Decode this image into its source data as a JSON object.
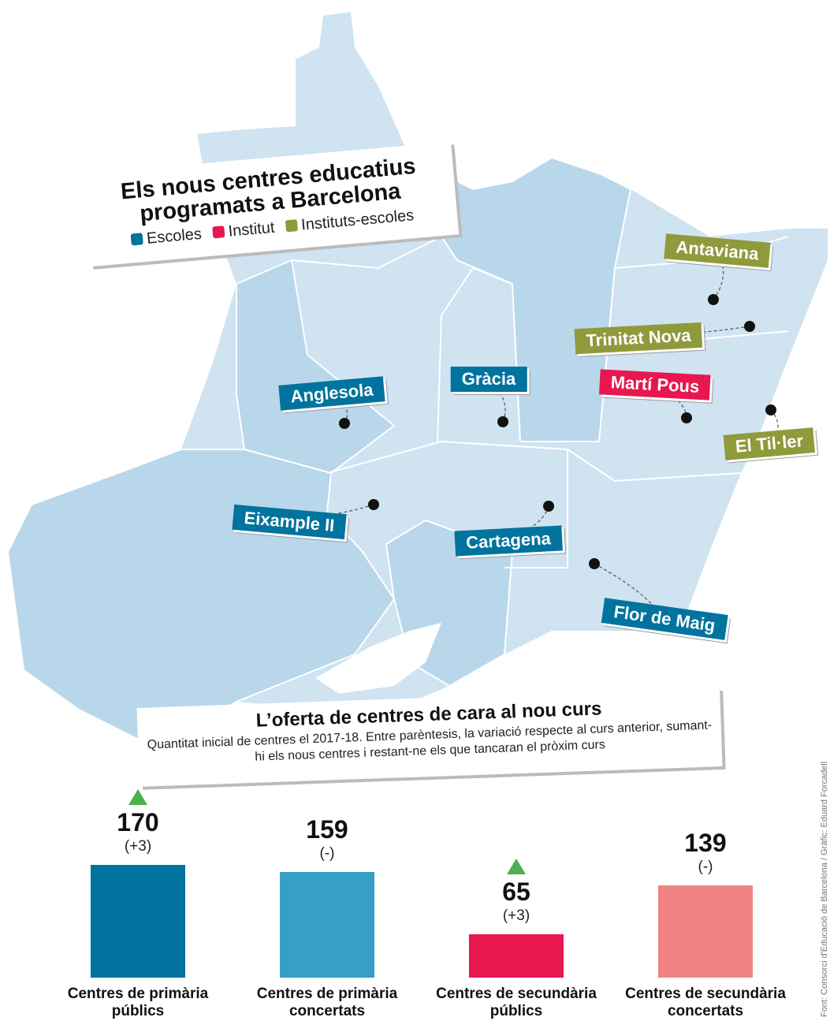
{
  "map": {
    "title": "Els nous centres educatius programats a Barcelona",
    "legend": [
      {
        "label": "Escoles",
        "color": "#00739e"
      },
      {
        "label": "Institut",
        "color": "#e8174f"
      },
      {
        "label": "Instituts-escoles",
        "color": "#8f9a3a"
      }
    ],
    "centres": [
      {
        "name": "Antaviana",
        "type": 2
      },
      {
        "name": "Trinitat Nova",
        "type": 2
      },
      {
        "name": "Gràcia",
        "type": 0
      },
      {
        "name": "Martí Pous",
        "type": 1
      },
      {
        "name": "Anglesola",
        "type": 0
      },
      {
        "name": "El Til·ler",
        "type": 2
      },
      {
        "name": "Eixample II",
        "type": 0
      },
      {
        "name": "Cartagena",
        "type": 0
      },
      {
        "name": "Flor de Maig",
        "type": 0
      }
    ]
  },
  "chart_data": {
    "type": "bar",
    "title": "L’oferta de centres de cara al nou curs",
    "subtitle": "Quantitat inicial de centres el 2017-18. Entre parèntesis, la variació respecte al curs anterior, sumant-hi els nous centres i restant-ne els que tancaran el pròxim curs",
    "categories": [
      "Centres de primària públics",
      "Centres de primària concertats",
      "Centres de secundària públics",
      "Centres de secundària concertats"
    ],
    "values": [
      170,
      159,
      65,
      139
    ],
    "changes": [
      "(+3)",
      "(-)",
      "(+3)",
      "(-)"
    ],
    "trend": [
      "up",
      null,
      "up",
      null
    ],
    "trend_color": "#4caf50",
    "colors": [
      "#00739e",
      "#359fc6",
      "#e8174f",
      "#f08484"
    ]
  },
  "credit": "Font: Consorci d'Educació de Barcelona / Gràfic: Eduard Forcadell"
}
